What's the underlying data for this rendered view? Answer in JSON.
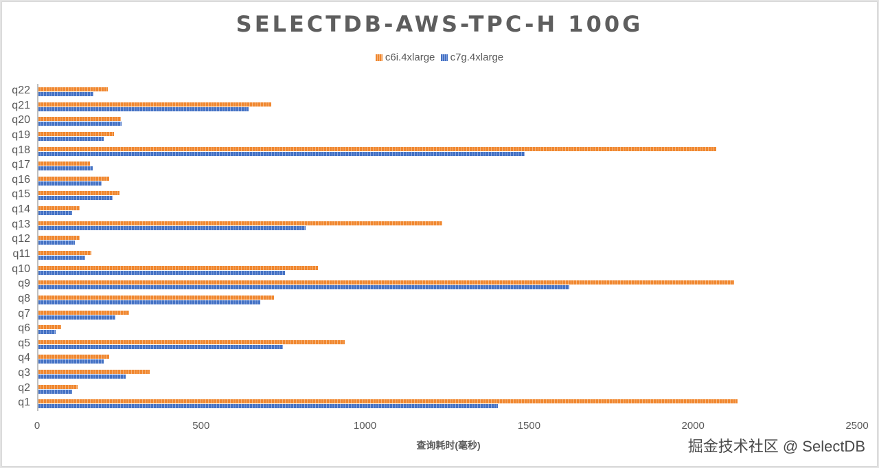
{
  "chart_data": {
    "type": "bar",
    "orientation": "horizontal",
    "title": "SELECTDB-AWS-TPC-H 100G",
    "xlabel": "查询耗时(毫秒)",
    "ylabel": "",
    "xlim": [
      0,
      2500
    ],
    "xticks": [
      0,
      500,
      1000,
      1500,
      2000,
      2500
    ],
    "grid": false,
    "legend_position": "top",
    "categories": [
      "q1",
      "q2",
      "q3",
      "q4",
      "q5",
      "q6",
      "q7",
      "q8",
      "q9",
      "q10",
      "q11",
      "q12",
      "q13",
      "q14",
      "q15",
      "q16",
      "q17",
      "q18",
      "q19",
      "q20",
      "q21",
      "q22"
    ],
    "series": [
      {
        "name": "c6i.4xlarge",
        "color": "#f0872f",
        "values": [
          2131,
          119,
          339,
          216,
          934,
          69,
          276,
          718,
          2121,
          852,
          161,
          126,
          1231,
          126,
          247,
          216,
          157,
          2067,
          230,
          251,
          710,
          211
        ]
      },
      {
        "name": "c7g.4xlarge",
        "color": "#4472c4",
        "values": [
          1401,
          103,
          266,
          199,
          745,
          52,
          235,
          676,
          1618,
          752,
          142,
          111,
          814,
          103,
          226,
          193,
          165,
          1482,
          199,
          253,
          641,
          168
        ]
      }
    ]
  },
  "legend": {
    "items": [
      {
        "label": "c6i.4xlarge",
        "color": "#f0872f"
      },
      {
        "label": "c7g.4xlarge",
        "color": "#4472c4"
      }
    ]
  },
  "watermark": "掘金技术社区 @ SelectDB"
}
